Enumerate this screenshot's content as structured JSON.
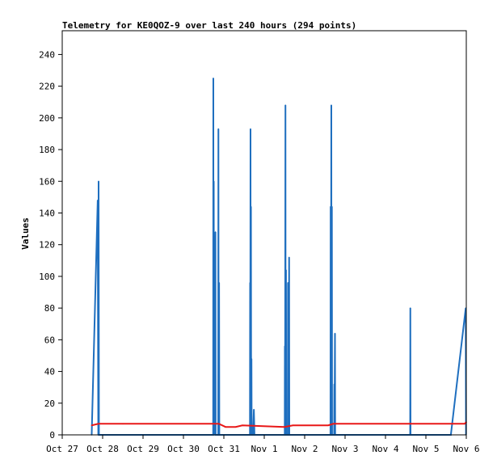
{
  "chart_data": {
    "type": "line",
    "title": "Telemetry for KE0QOZ-9 over last 240 hours (294 points)",
    "xlabel": "",
    "ylabel": "Values",
    "x_domain": [
      "2025-10-27 00:00",
      "2025-11-06 00:00"
    ],
    "ylim": [
      0,
      255
    ],
    "y_ticks": [
      0,
      20,
      40,
      60,
      80,
      100,
      120,
      140,
      160,
      180,
      200,
      220,
      240
    ],
    "x_ticks": [
      {
        "t": "2025-10-27 00:00",
        "label": "Oct 27"
      },
      {
        "t": "2025-10-28 00:00",
        "label": "Oct 28"
      },
      {
        "t": "2025-10-29 00:00",
        "label": "Oct 29"
      },
      {
        "t": "2025-10-30 00:00",
        "label": "Oct 30"
      },
      {
        "t": "2025-10-31 00:00",
        "label": "Oct 31"
      },
      {
        "t": "2025-11-01 00:00",
        "label": "Nov 1"
      },
      {
        "t": "2025-11-02 00:00",
        "label": "Nov 2"
      },
      {
        "t": "2025-11-03 00:00",
        "label": "Nov 3"
      },
      {
        "t": "2025-11-04 00:00",
        "label": "Nov 4"
      },
      {
        "t": "2025-11-05 00:00",
        "label": "Nov 5"
      },
      {
        "t": "2025-11-06 00:00",
        "label": "Nov 6"
      }
    ],
    "grid": false,
    "series": [
      {
        "color": "#1f6fbf",
        "points": [
          [
            "2025-10-27 17:30",
            0
          ],
          [
            "2025-10-27 21:05",
            148
          ],
          [
            "2025-10-27 21:25",
            0
          ],
          [
            "2025-10-27 21:36",
            160
          ],
          [
            "2025-10-27 21:48",
            0
          ],
          [
            "2025-10-30 17:40",
            0
          ],
          [
            "2025-10-30 17:45",
            225
          ],
          [
            "2025-10-30 17:52",
            0
          ],
          [
            "2025-10-30 18:00",
            160
          ],
          [
            "2025-10-30 18:08",
            0
          ],
          [
            "2025-10-30 18:18",
            112
          ],
          [
            "2025-10-30 18:26",
            0
          ],
          [
            "2025-10-30 18:36",
            96
          ],
          [
            "2025-10-30 18:44",
            0
          ],
          [
            "2025-10-30 19:00",
            128
          ],
          [
            "2025-10-30 19:08",
            0
          ],
          [
            "2025-10-30 20:40",
            0
          ],
          [
            "2025-10-30 20:46",
            193
          ],
          [
            "2025-10-30 20:54",
            0
          ],
          [
            "2025-10-30 21:10",
            96
          ],
          [
            "2025-10-30 21:18",
            0
          ],
          [
            "2025-10-31 15:30",
            0
          ],
          [
            "2025-10-31 15:36",
            96
          ],
          [
            "2025-10-31 15:42",
            0
          ],
          [
            "2025-10-31 15:50",
            193
          ],
          [
            "2025-10-31 15:57",
            0
          ],
          [
            "2025-10-31 16:06",
            144
          ],
          [
            "2025-10-31 16:14",
            0
          ],
          [
            "2025-10-31 16:24",
            48
          ],
          [
            "2025-10-31 16:32",
            0
          ],
          [
            "2025-10-31 17:20",
            0
          ],
          [
            "2025-10-31 17:50",
            16
          ],
          [
            "2025-10-31 18:10",
            0
          ],
          [
            "2025-11-01 12:10",
            0
          ],
          [
            "2025-11-01 12:15",
            56
          ],
          [
            "2025-11-01 12:22",
            0
          ],
          [
            "2025-11-01 12:35",
            208
          ],
          [
            "2025-11-01 12:42",
            0
          ],
          [
            "2025-11-01 12:55",
            104
          ],
          [
            "2025-11-01 13:02",
            0
          ],
          [
            "2025-11-01 14:00",
            0
          ],
          [
            "2025-11-01 14:06",
            96
          ],
          [
            "2025-11-01 14:13",
            0
          ],
          [
            "2025-11-01 14:40",
            0
          ],
          [
            "2025-11-01 14:46",
            112
          ],
          [
            "2025-11-01 14:53",
            0
          ],
          [
            "2025-11-02 15:20",
            0
          ],
          [
            "2025-11-02 15:26",
            144
          ],
          [
            "2025-11-02 15:33",
            0
          ],
          [
            "2025-11-02 15:50",
            208
          ],
          [
            "2025-11-02 15:57",
            0
          ],
          [
            "2025-11-02 16:10",
            144
          ],
          [
            "2025-11-02 16:17",
            0
          ],
          [
            "2025-11-02 17:30",
            0
          ],
          [
            "2025-11-02 17:36",
            32
          ],
          [
            "2025-11-02 17:43",
            0
          ],
          [
            "2025-11-02 18:00",
            64
          ],
          [
            "2025-11-02 18:07",
            0
          ],
          [
            "2025-11-04 14:40",
            0
          ],
          [
            "2025-11-04 14:46",
            80
          ],
          [
            "2025-11-04 14:53",
            0
          ],
          [
            "2025-11-05 14:50",
            0
          ],
          [
            "2025-11-05 23:40",
            80
          ],
          [
            "2025-11-05 23:50",
            0
          ]
        ]
      },
      {
        "color": "#e81818",
        "points": [
          [
            "2025-10-27 17:30",
            6
          ],
          [
            "2025-10-27 21:30",
            7
          ],
          [
            "2025-10-28 12:00",
            7
          ],
          [
            "2025-10-30 21:00",
            7
          ],
          [
            "2025-10-31 01:00",
            5
          ],
          [
            "2025-10-31 07:00",
            5
          ],
          [
            "2025-10-31 11:00",
            6
          ],
          [
            "2025-11-01 12:00",
            5
          ],
          [
            "2025-11-01 17:00",
            6
          ],
          [
            "2025-11-02 14:00",
            6
          ],
          [
            "2025-11-02 17:00",
            7
          ],
          [
            "2025-11-05 23:00",
            7
          ],
          [
            "2025-11-06 00:00",
            8
          ]
        ]
      }
    ]
  }
}
